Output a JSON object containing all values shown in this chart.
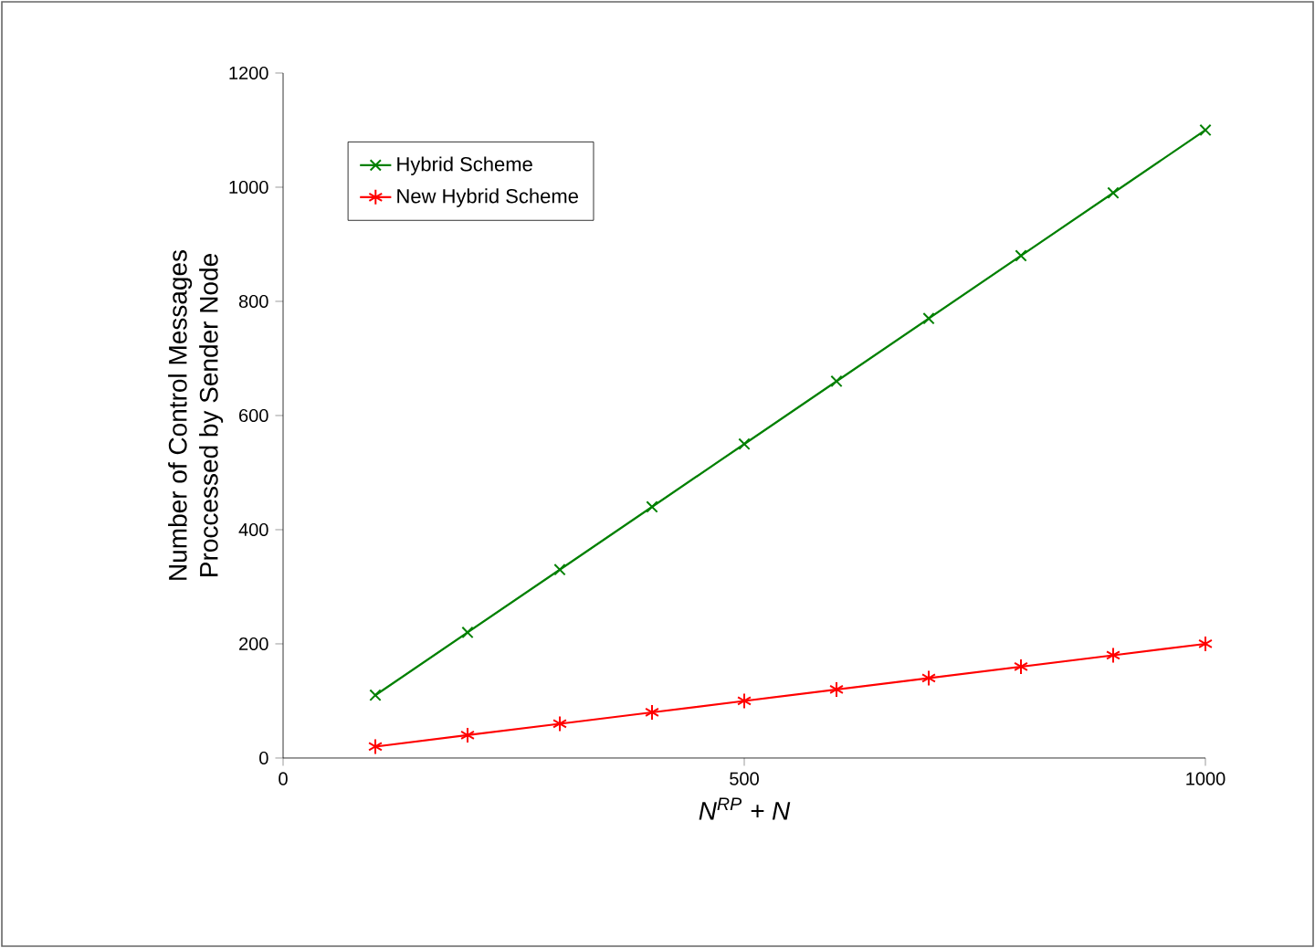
{
  "chart_data": {
    "type": "line",
    "xlabel": "N$^{RP}$ + N",
    "ylabel": "Number of Control Messages Proccessed by Sender Node",
    "x": [
      100,
      200,
      300,
      400,
      500,
      600,
      700,
      800,
      900,
      1000
    ],
    "series": [
      {
        "name": "Hybrid Scheme",
        "color": "#008000",
        "marker": "cross",
        "values": [
          110,
          220,
          330,
          440,
          550,
          660,
          770,
          880,
          990,
          1100
        ]
      },
      {
        "name": "New Hybrid Scheme",
        "color": "#ff0000",
        "marker": "cross",
        "values": [
          20,
          40,
          60,
          80,
          100,
          120,
          140,
          160,
          180,
          200
        ]
      }
    ],
    "xlim": [
      0,
      1000
    ],
    "ylim": [
      0,
      1200
    ],
    "xticks": [
      0,
      500,
      1000
    ],
    "yticks": [
      0,
      200,
      400,
      600,
      800,
      1000,
      1200
    ],
    "grid": false,
    "legend": "top left",
    "line_style": "solid"
  }
}
